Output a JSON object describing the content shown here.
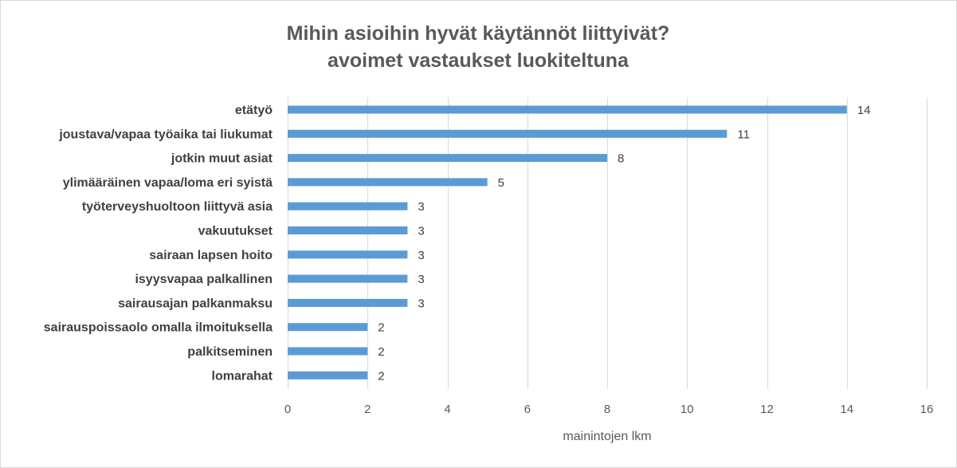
{
  "chart_data": {
    "type": "bar",
    "orientation": "horizontal",
    "title_lines": [
      "Mihin asioihin hyvät käytännöt liittyivät?",
      "avoimet vastaukset luokiteltuna"
    ],
    "categories": [
      "etätyö",
      "joustava/vapaa työaika tai liukumat",
      "jotkin muut asiat",
      "ylimääräinen vapaa/loma eri syistä",
      "työterveyshuoltoon liittyvä asia",
      "vakuutukset",
      "sairaan lapsen hoito",
      "isyysvapaa palkallinen",
      "sairausajan palkanmaksu",
      "sairauspoissaolo omalla ilmoituksella",
      "palkitseminen",
      "lomarahat"
    ],
    "values": [
      14,
      11,
      8,
      5,
      3,
      3,
      3,
      3,
      3,
      2,
      2,
      2
    ],
    "xlabel": "mainintojen lkm",
    "ylabel": "",
    "xlim": [
      0,
      16
    ],
    "xticks": [
      "0",
      "2",
      "4",
      "6",
      "8",
      "10",
      "12",
      "14",
      "16"
    ],
    "grid": "vertical",
    "data_labels": true,
    "colors": {
      "bar": "#5B9BD5",
      "grid": "#d9d9d9",
      "title": "#595959",
      "category_text": "#404040",
      "tick_text": "#595959"
    }
  }
}
